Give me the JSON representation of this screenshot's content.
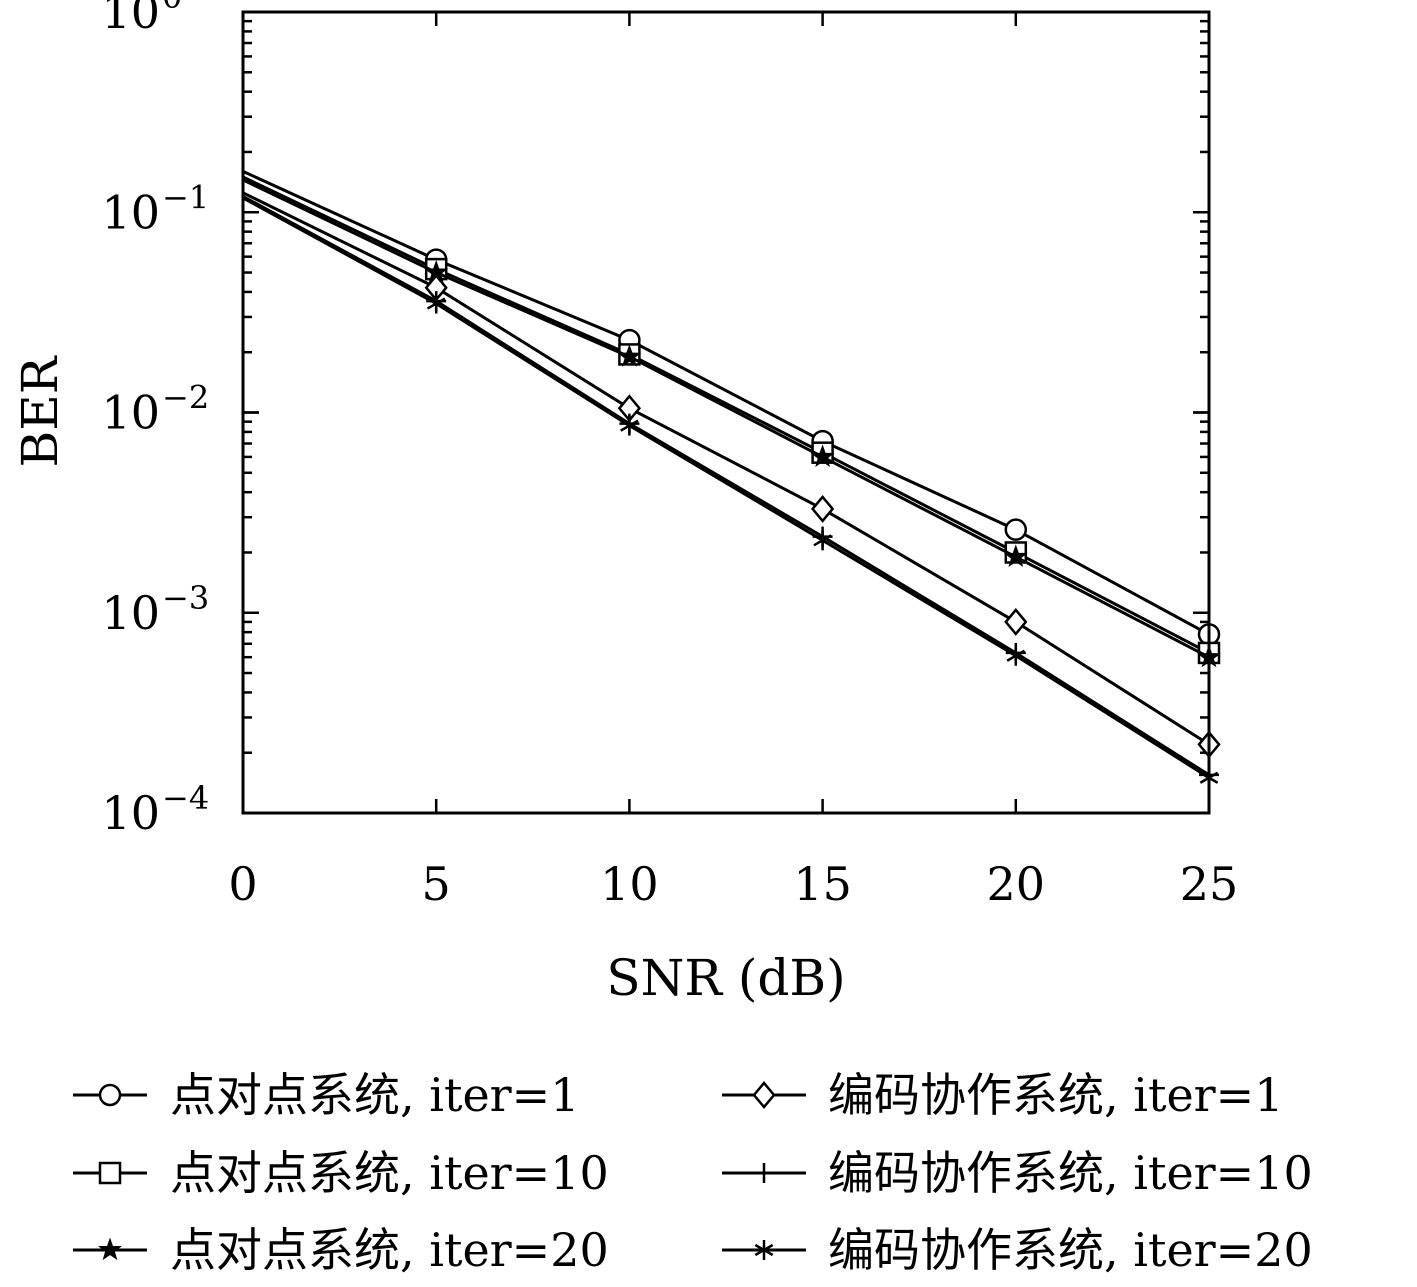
{
  "chart_data": {
    "type": "line",
    "title": "",
    "xlabel": "SNR (dB)",
    "ylabel": "BER",
    "yscale": "log",
    "xlim": [
      0,
      25
    ],
    "ylim": [
      0.0001,
      1
    ],
    "xticks": [
      "0",
      "5",
      "10",
      "15",
      "20",
      "25"
    ],
    "yticks": [
      {
        "base": "10",
        "exp": "0"
      },
      {
        "base": "10",
        "exp": "−1"
      },
      {
        "base": "10",
        "exp": "−2"
      },
      {
        "base": "10",
        "exp": "−3"
      },
      {
        "base": "10",
        "exp": "−4"
      }
    ],
    "grid": false,
    "legend_position": "bottom",
    "x": [
      0,
      5,
      10,
      15,
      20,
      25
    ],
    "series": [
      {
        "name": "点对点系统, iter=1",
        "marker": "circle",
        "values": [
          0.16,
          0.058,
          0.023,
          0.0072,
          0.0026,
          0.00078
        ]
      },
      {
        "name": "点对点系统, iter=10",
        "marker": "square",
        "values": [
          0.15,
          0.052,
          0.0195,
          0.0063,
          0.002,
          0.00063
        ]
      },
      {
        "name": "点对点系统, iter=20",
        "marker": "star",
        "values": [
          0.145,
          0.05,
          0.019,
          0.006,
          0.0019,
          0.0006
        ]
      },
      {
        "name": "编码协作系统, iter=1",
        "marker": "diamond",
        "values": [
          0.125,
          0.042,
          0.0105,
          0.0033,
          0.0009,
          0.00022
        ]
      },
      {
        "name": "编码协作系统, iter=10",
        "marker": "plus",
        "values": [
          0.12,
          0.036,
          0.0088,
          0.0024,
          0.00063,
          0.000155
        ]
      },
      {
        "name": "编码协作系统, iter=20",
        "marker": "asterisk",
        "values": [
          0.118,
          0.035,
          0.0086,
          0.0023,
          0.00061,
          0.00015
        ]
      }
    ],
    "colors": {
      "line": "#000000",
      "background": "#ffffff"
    }
  }
}
